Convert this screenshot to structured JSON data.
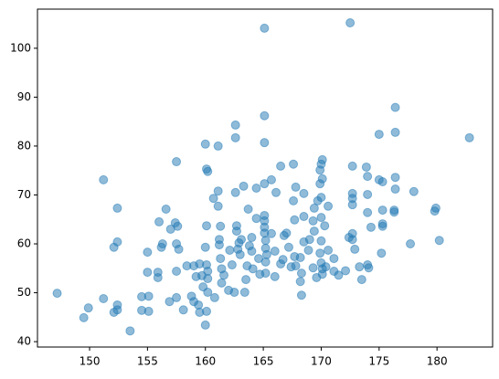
{
  "chart_data": {
    "type": "scatter",
    "color": "#1f77b4",
    "x": [
      147.2,
      149.5,
      149.9,
      151.2,
      151.2,
      152.1,
      152.1,
      152.4,
      152.4,
      152.4,
      152.4,
      153.5,
      154.5,
      154.5,
      155.0,
      155.0,
      155.1,
      155.1,
      155.9,
      155.9,
      156.0,
      156.2,
      156.3,
      156.6,
      156.9,
      157.0,
      157.4,
      157.5,
      157.5,
      157.5,
      157.5,
      157.7,
      157.6,
      158.1,
      158.4,
      158.8,
      159.0,
      159.0,
      159.2,
      159.4,
      159.5,
      159.5,
      160.0,
      160.1,
      160.2,
      160.0,
      160.1,
      160.2,
      160.2,
      160.2,
      160.1,
      160.0,
      160.1,
      159.8,
      159.7,
      160.8,
      160.7,
      161.1,
      161.1,
      161.1,
      161.3,
      161.2,
      161.2,
      161.3,
      161.4,
      161.6,
      161.4,
      162.0,
      162.1,
      162.3,
      162.5,
      162.6,
      162.6,
      162.6,
      162.7,
      162.7,
      162.8,
      162.9,
      163.0,
      163.1,
      163.3,
      163.4,
      163.5,
      163.6,
      163.7,
      163.8,
      164.0,
      164.0,
      164.1,
      164.4,
      164.4,
      164.6,
      164.7,
      165.1,
      165.1,
      165.1,
      165.1,
      165.1,
      165.1,
      165.1,
      165.1,
      165.2,
      165.2,
      165.2,
      165.2,
      165.3,
      165.7,
      165.7,
      166.0,
      166.0,
      166.1,
      166.5,
      166.5,
      166.7,
      166.8,
      167.0,
      167.2,
      167.4,
      167.7,
      167.6,
      167.6,
      167.7,
      167.8,
      167.8,
      168.2,
      168.2,
      168.3,
      168.5,
      168.5,
      168.3,
      168.5,
      168.9,
      169.0,
      169.3,
      169.3,
      169.4,
      169.4,
      169.6,
      169.7,
      169.9,
      170.0,
      169.9,
      169.9,
      170.0,
      170.0,
      170.1,
      170.1,
      170.0,
      170.0,
      170.1,
      170.1,
      170.3,
      170.4,
      170.6,
      170.6,
      171.1,
      171.1,
      171.5,
      172.1,
      172.5,
      172.7,
      172.7,
      172.7,
      172.7,
      172.7,
      172.7,
      172.4,
      172.9,
      173.3,
      173.5,
      173.9,
      174.0,
      174.0,
      174.0,
      174.0,
      174.1,
      174.3,
      175.0,
      175.0,
      175.3,
      175.3,
      175.3,
      175.3,
      175.2,
      176.3,
      176.3,
      176.4,
      176.4,
      176.4,
      176.4,
      177.7,
      178.0,
      179.8,
      179.9,
      180.2,
      182.8
    ],
    "values": [
      49.9,
      44.9,
      46.9,
      48.8,
      73.1,
      46.0,
      59.3,
      60.4,
      67.3,
      47.5,
      46.5,
      42.2,
      46.4,
      49.2,
      58.3,
      54.2,
      46.2,
      49.3,
      53.1,
      54.2,
      64.5,
      59.3,
      60.0,
      67.1,
      48.2,
      63.0,
      64.3,
      54.4,
      49.0,
      76.8,
      60.0,
      58.9,
      63.6,
      46.5,
      55.5,
      49.3,
      55.5,
      48.2,
      53.3,
      47.5,
      46.0,
      55.9,
      80.4,
      75.3,
      74.8,
      43.4,
      46.2,
      50.1,
      52.9,
      54.4,
      55.7,
      59.3,
      63.7,
      51.2,
      53.5,
      49.0,
      69.3,
      80.0,
      67.7,
      70.8,
      63.6,
      59.8,
      60.9,
      57.0,
      54.9,
      53.6,
      52.0,
      50.5,
      58.7,
      55.7,
      50.1,
      84.3,
      81.7,
      70.5,
      63.7,
      62.6,
      58.9,
      60.2,
      57.8,
      60.9,
      71.8,
      50.1,
      52.7,
      55.5,
      67.1,
      59.6,
      61.3,
      58.5,
      54.9,
      65.2,
      71.4,
      57.0,
      53.8,
      104.1,
      86.2,
      80.7,
      72.3,
      65.8,
      64.7,
      63.4,
      62.2,
      60.7,
      59.1,
      56.3,
      54.0,
      57.8,
      73.1,
      62.1,
      53.3,
      58.5,
      70.5,
      55.9,
      75.9,
      56.8,
      61.7,
      62.2,
      59.3,
      55.3,
      64.9,
      76.3,
      68.8,
      57.4,
      71.6,
      55.5,
      57.2,
      52.3,
      54.0,
      65.6,
      60.4,
      49.5,
      70.3,
      58.7,
      60.9,
      64.7,
      55.1,
      62.6,
      67.3,
      53.1,
      68.8,
      72.3,
      76.3,
      75.1,
      58.1,
      65.4,
      69.5,
      77.2,
      73.3,
      60.6,
      56.1,
      53.8,
      54.9,
      63.7,
      55.3,
      67.7,
      58.7,
      54.4,
      57.0,
      53.6,
      54.5,
      105.2,
      75.9,
      70.3,
      69.3,
      68.0,
      60.9,
      62.1,
      61.3,
      58.9,
      55.3,
      52.7,
      75.7,
      73.8,
      66.4,
      70.1,
      55.7,
      55.1,
      63.4,
      82.4,
      73.1,
      72.7,
      66.9,
      63.6,
      64.1,
      58.1,
      66.9,
      66.5,
      87.9,
      82.8,
      73.6,
      71.2,
      60.0,
      70.7,
      66.7,
      67.3,
      60.7,
      81.7
    ],
    "xlim": [
      145.5,
      184.8
    ],
    "xticks": [
      150,
      155,
      160,
      165,
      170,
      175,
      180
    ],
    "ylim": [
      38.9,
      108
    ],
    "yticks": [
      40,
      50,
      60,
      70,
      80,
      90,
      100
    ]
  }
}
